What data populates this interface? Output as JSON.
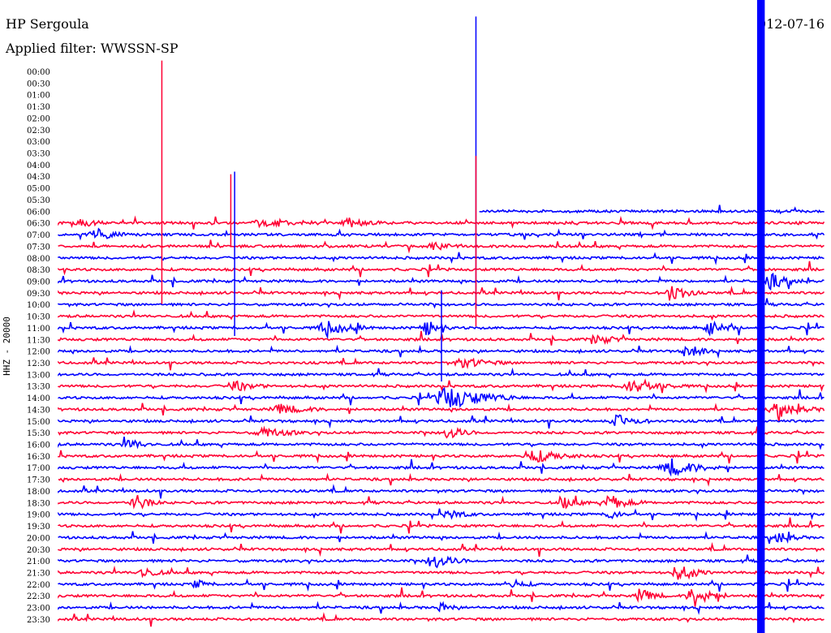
{
  "header": {
    "station": "HP Sergoula",
    "filter_label": "Applied filter: WWSSN-SP",
    "date": "012-07-16"
  },
  "channel_label": "HHZ - 20000",
  "colors": {
    "odd": "#0000ff",
    "even": "#ff0033"
  },
  "chart_data": {
    "type": "line",
    "title": "HP Sergoula",
    "subtitle": "Applied filter: WWSSN-SP",
    "ylabel": "HHZ - 20000",
    "tick_labels": [
      "00:00",
      "00:30",
      "01:00",
      "01:30",
      "02:00",
      "02:30",
      "03:00",
      "03:30",
      "04:00",
      "04:30",
      "05:00",
      "05:30",
      "06:00",
      "06:30",
      "07:00",
      "07:30",
      "08:00",
      "08:30",
      "09:00",
      "09:30",
      "10:00",
      "10:30",
      "11:00",
      "11:30",
      "12:00",
      "12:30",
      "13:00",
      "13:30",
      "14:00",
      "14:30",
      "15:00",
      "15:30",
      "16:00",
      "16:30",
      "17:00",
      "17:30",
      "18:00",
      "18:30",
      "19:00",
      "19:30",
      "20:00",
      "20:30",
      "21:00",
      "21:30",
      "22:00",
      "22:30",
      "23:00",
      "23:30"
    ],
    "first_trace_start_fraction": 0.55,
    "events": [
      {
        "trace": "06:30",
        "at": 0.03,
        "amp": 6,
        "dur": 0.03
      },
      {
        "trace": "06:30",
        "at": 0.27,
        "amp": 5,
        "dur": 0.07
      },
      {
        "trace": "06:30",
        "at": 0.38,
        "amp": 5,
        "dur": 0.04
      },
      {
        "trace": "07:00",
        "at": 0.05,
        "amp": 7,
        "dur": 0.04
      },
      {
        "trace": "07:30",
        "at": 0.49,
        "amp": 6,
        "dur": 0.03
      },
      {
        "trace": "09:00",
        "at": 0.93,
        "amp": 9,
        "dur": 0.04
      },
      {
        "trace": "09:30",
        "at": 0.8,
        "amp": 14,
        "dur": 0.03
      },
      {
        "trace": "11:00",
        "at": 0.35,
        "amp": 8,
        "dur": 0.05
      },
      {
        "trace": "11:00",
        "at": 0.48,
        "amp": 10,
        "dur": 0.03
      },
      {
        "trace": "11:00",
        "at": 0.85,
        "amp": 9,
        "dur": 0.03
      },
      {
        "trace": "11:30",
        "at": 0.7,
        "amp": 6,
        "dur": 0.04
      },
      {
        "trace": "12:00",
        "at": 0.82,
        "amp": 10,
        "dur": 0.03
      },
      {
        "trace": "12:30",
        "at": 0.53,
        "amp": 6,
        "dur": 0.05
      },
      {
        "trace": "13:30",
        "at": 0.23,
        "amp": 6,
        "dur": 0.04
      },
      {
        "trace": "13:30",
        "at": 0.75,
        "amp": 8,
        "dur": 0.06
      },
      {
        "trace": "14:00",
        "at": 0.51,
        "amp": 14,
        "dur": 0.08
      },
      {
        "trace": "14:30",
        "at": 0.29,
        "amp": 6,
        "dur": 0.05
      },
      {
        "trace": "14:30",
        "at": 0.94,
        "amp": 9,
        "dur": 0.05
      },
      {
        "trace": "15:00",
        "at": 0.73,
        "amp": 7,
        "dur": 0.04
      },
      {
        "trace": "15:30",
        "at": 0.27,
        "amp": 6,
        "dur": 0.05
      },
      {
        "trace": "15:30",
        "at": 0.51,
        "amp": 9,
        "dur": 0.03
      },
      {
        "trace": "16:00",
        "at": 0.09,
        "amp": 8,
        "dur": 0.03
      },
      {
        "trace": "16:30",
        "at": 0.62,
        "amp": 8,
        "dur": 0.06
      },
      {
        "trace": "17:00",
        "at": 0.8,
        "amp": 10,
        "dur": 0.06
      },
      {
        "trace": "18:30",
        "at": 0.1,
        "amp": 11,
        "dur": 0.03
      },
      {
        "trace": "18:30",
        "at": 0.66,
        "amp": 7,
        "dur": 0.03
      },
      {
        "trace": "18:30",
        "at": 0.72,
        "amp": 9,
        "dur": 0.04
      },
      {
        "trace": "19:00",
        "at": 0.51,
        "amp": 6,
        "dur": 0.03
      },
      {
        "trace": "19:00",
        "at": 0.72,
        "amp": 7,
        "dur": 0.02
      },
      {
        "trace": "20:00",
        "at": 0.94,
        "amp": 8,
        "dur": 0.03
      },
      {
        "trace": "21:00",
        "at": 0.49,
        "amp": 10,
        "dur": 0.04
      },
      {
        "trace": "21:30",
        "at": 0.11,
        "amp": 7,
        "dur": 0.03
      },
      {
        "trace": "21:30",
        "at": 0.81,
        "amp": 10,
        "dur": 0.04
      },
      {
        "trace": "22:00",
        "at": 0.18,
        "amp": 6,
        "dur": 0.02
      },
      {
        "trace": "22:00",
        "at": 0.59,
        "amp": 6,
        "dur": 0.03
      },
      {
        "trace": "22:30",
        "at": 0.76,
        "amp": 9,
        "dur": 0.03
      },
      {
        "trace": "22:30",
        "at": 0.83,
        "amp": 14,
        "dur": 0.04
      },
      {
        "trace": "23:00",
        "at": 0.5,
        "amp": 6,
        "dur": 0.02
      }
    ],
    "spikes": [
      {
        "trace": "06:30",
        "at": 0.135,
        "height": 200
      },
      {
        "trace": "06:30",
        "at": 0.225,
        "height": 60
      },
      {
        "trace": "09:00",
        "at": 0.23,
        "height": 135
      },
      {
        "trace": "06:00",
        "at": 0.545,
        "height": 240
      },
      {
        "trace": "08:30",
        "at": 0.545,
        "height": 140
      },
      {
        "trace": "12:00",
        "at": 0.5,
        "height": 75
      }
    ],
    "saturated_band": {
      "from": 0.912,
      "to": 0.922
    },
    "grid": false
  }
}
